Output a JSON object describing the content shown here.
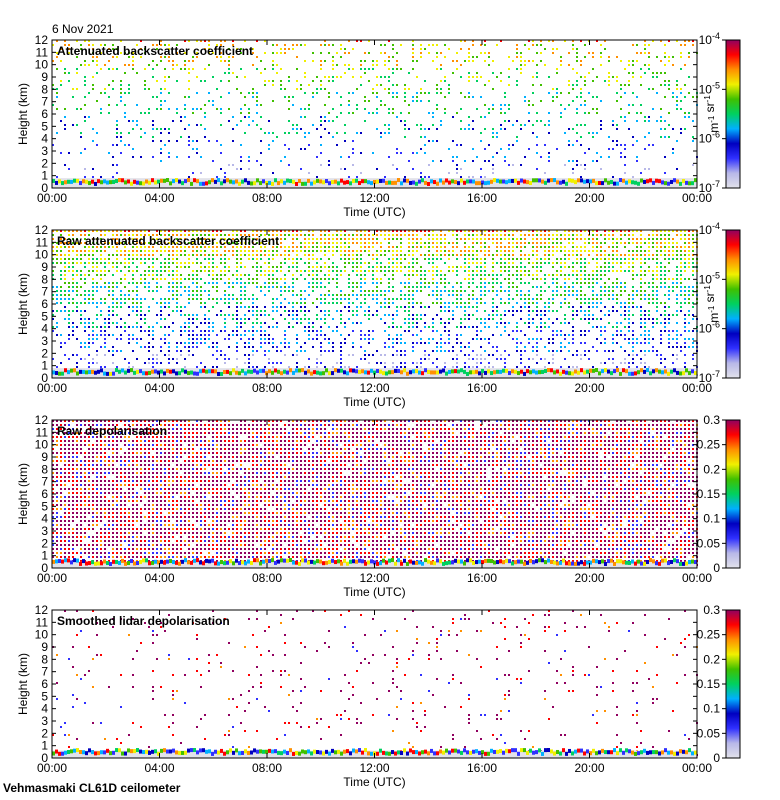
{
  "header": {
    "date": "6 Nov 2021"
  },
  "footer": {
    "site": "Vehmasmaki CL61D ceilometer"
  },
  "colors": {
    "scale": [
      "#e2e2ea",
      "#b8b8e8",
      "#3030ff",
      "#0000c0",
      "#00b0ff",
      "#00d060",
      "#40c000",
      "#f0f000",
      "#ff9000",
      "#ff0000",
      "#900060",
      "#70005a"
    ],
    "background": "#ffffff"
  },
  "chart_data": [
    {
      "type": "heatmap",
      "title": "Attenuated backscatter coefficient",
      "xlabel": "Time (UTC)",
      "ylabel": "Height (km)",
      "x_ticks": [
        "00:00",
        "04:00",
        "08:00",
        "12:00",
        "16:00",
        "20:00",
        "00:00"
      ],
      "y_ticks": [
        "0",
        "1",
        "2",
        "3",
        "4",
        "5",
        "6",
        "7",
        "8",
        "9",
        "10",
        "11",
        "12"
      ],
      "xlim_hours": [
        0,
        24
      ],
      "ylim_km": [
        0,
        12
      ],
      "colorbar": {
        "scale": "log",
        "ticks": [
          "10-7",
          "10-6",
          "10-5",
          "10-4"
        ],
        "tick_values": [
          1e-07,
          1e-06,
          1e-05,
          0.0001
        ],
        "label": "m-1 sr-1"
      },
      "noise_density": 0.32,
      "noise_tone": "mid",
      "surface_layer_top_km": 0.8
    },
    {
      "type": "heatmap",
      "title": "Raw attenuated backscatter coefficient",
      "xlabel": "Time (UTC)",
      "ylabel": "Height (km)",
      "x_ticks": [
        "00:00",
        "04:00",
        "08:00",
        "12:00",
        "16:00",
        "20:00",
        "00:00"
      ],
      "y_ticks": [
        "0",
        "1",
        "2",
        "3",
        "4",
        "5",
        "6",
        "7",
        "8",
        "9",
        "10",
        "11",
        "12"
      ],
      "xlim_hours": [
        0,
        24
      ],
      "ylim_km": [
        0,
        12
      ],
      "colorbar": {
        "scale": "log",
        "ticks": [
          "10-7",
          "10-6",
          "10-5",
          "10-4"
        ],
        "tick_values": [
          1e-07,
          1e-06,
          1e-05,
          0.0001
        ],
        "label": "m-1 sr-1"
      },
      "noise_density": 0.9,
      "noise_tone": "mid",
      "surface_layer_top_km": 0.8
    },
    {
      "type": "heatmap",
      "title": "Raw depolarisation",
      "xlabel": "Time (UTC)",
      "ylabel": "Height (km)",
      "x_ticks": [
        "00:00",
        "04:00",
        "08:00",
        "12:00",
        "16:00",
        "20:00",
        "00:00"
      ],
      "y_ticks": [
        "0",
        "1",
        "2",
        "3",
        "4",
        "5",
        "6",
        "7",
        "8",
        "9",
        "10",
        "11",
        "12"
      ],
      "xlim_hours": [
        0,
        24
      ],
      "ylim_km": [
        0,
        12
      ],
      "colorbar": {
        "scale": "linear",
        "ticks": [
          "0",
          "0.05",
          "0.1",
          "0.15",
          "0.2",
          "0.25",
          "0.3"
        ],
        "tick_values": [
          0,
          0.05,
          0.1,
          0.15,
          0.2,
          0.25,
          0.3
        ],
        "label": ""
      },
      "noise_density": 0.95,
      "noise_tone": "high",
      "surface_layer_top_km": 0.5
    },
    {
      "type": "heatmap",
      "title": "Smoothed lidar depolarisation",
      "xlabel": "Time (UTC)",
      "ylabel": "Height (km)",
      "x_ticks": [
        "00:00",
        "04:00",
        "08:00",
        "12:00",
        "16:00",
        "20:00",
        "00:00"
      ],
      "y_ticks": [
        "0",
        "1",
        "2",
        "3",
        "4",
        "5",
        "6",
        "7",
        "8",
        "9",
        "10",
        "11",
        "12"
      ],
      "xlim_hours": [
        0,
        24
      ],
      "ylim_km": [
        0,
        12
      ],
      "colorbar": {
        "scale": "linear",
        "ticks": [
          "0",
          "0.05",
          "0.1",
          "0.15",
          "0.2",
          "0.25",
          "0.3"
        ],
        "tick_values": [
          0,
          0.05,
          0.1,
          0.15,
          0.2,
          0.25,
          0.3
        ],
        "label": ""
      },
      "noise_density": 0.08,
      "noise_tone": "high",
      "surface_layer_top_km": 0.6
    }
  ]
}
